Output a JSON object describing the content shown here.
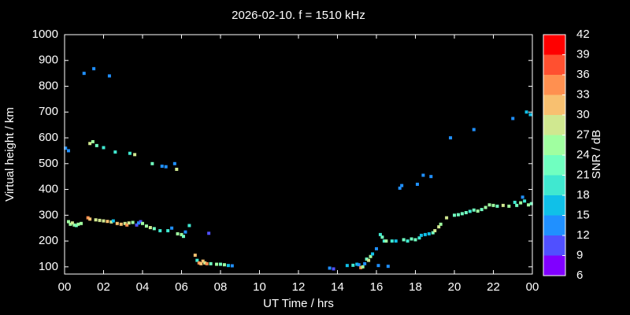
{
  "chart_data": {
    "type": "scatter",
    "title": "2026-02-10. f = 1510 kHz",
    "xlabel": "UT Time / hrs",
    "ylabel": "Virtual height / km",
    "colorbar_label": "SNR / dB",
    "xlim": [
      0,
      24
    ],
    "ylim": [
      72,
      1000
    ],
    "xticks": [
      {
        "value": 0,
        "label": "00"
      },
      {
        "value": 2,
        "label": "02"
      },
      {
        "value": 4,
        "label": "04"
      },
      {
        "value": 6,
        "label": "06"
      },
      {
        "value": 8,
        "label": "08"
      },
      10,
      12,
      14,
      16,
      18,
      20,
      22,
      {
        "value": 24,
        "label": "00"
      }
    ],
    "yticks": [
      100,
      200,
      300,
      400,
      500,
      600,
      700,
      800,
      900,
      1000
    ],
    "clim": [
      6,
      42
    ],
    "cticks": [
      6,
      9,
      12,
      15,
      18,
      21,
      24,
      27,
      30,
      33,
      36,
      39,
      42
    ],
    "colors": [
      "#8000ff",
      "#5050ff",
      "#2090ff",
      "#10c0e8",
      "#40e8d0",
      "#70ffc0",
      "#a0ffa0",
      "#d0e890",
      "#f8c070",
      "#ff9050",
      "#ff5030",
      "#ff0000"
    ],
    "x": [
      0.05,
      0.2,
      0.2,
      0.3,
      0.4,
      0.5,
      0.6,
      0.7,
      0.85,
      1.0,
      1.2,
      1.3,
      1.3,
      1.45,
      1.5,
      1.6,
      1.65,
      1.8,
      2.0,
      2.0,
      2.2,
      2.3,
      2.4,
      2.5,
      2.6,
      2.7,
      2.9,
      3.1,
      3.2,
      3.3,
      3.35,
      3.5,
      3.6,
      3.7,
      3.8,
      3.9,
      4.0,
      4.2,
      4.4,
      4.5,
      4.6,
      4.9,
      5.0,
      5.2,
      5.3,
      5.5,
      5.65,
      5.75,
      5.8,
      6.0,
      6.1,
      6.2,
      6.4,
      6.7,
      6.8,
      6.9,
      7.0,
      7.1,
      7.2,
      7.3,
      7.4,
      7.5,
      7.8,
      8.0,
      8.2,
      8.4,
      8.6,
      13.6,
      13.8,
      14.5,
      14.8,
      15.0,
      15.1,
      15.2,
      15.3,
      15.4,
      15.5,
      15.6,
      15.7,
      15.8,
      16.0,
      16.1,
      16.2,
      16.3,
      16.4,
      16.5,
      16.6,
      16.8,
      17.0,
      17.2,
      17.3,
      17.4,
      17.6,
      17.8,
      18.0,
      18.1,
      18.2,
      18.3,
      18.4,
      18.5,
      18.7,
      18.8,
      18.9,
      19.0,
      19.2,
      19.3,
      19.6,
      19.8,
      20.0,
      20.2,
      20.4,
      20.6,
      20.8,
      21.0,
      21.0,
      21.2,
      21.4,
      21.6,
      21.8,
      22.0,
      22.2,
      22.5,
      22.8,
      23.0,
      23.1,
      23.2,
      23.4,
      23.5,
      23.6,
      23.7,
      23.8,
      23.9,
      23.95
    ],
    "y": [
      560,
      550,
      275,
      265,
      270,
      262,
      260,
      265,
      268,
      850,
      290,
      285,
      578,
      585,
      868,
      282,
      570,
      280,
      278,
      562,
      276,
      840,
      274,
      278,
      545,
      268,
      265,
      268,
      262,
      270,
      540,
      272,
      535,
      262,
      270,
      275,
      268,
      258,
      252,
      500,
      248,
      240,
      490,
      488,
      240,
      250,
      500,
      478,
      228,
      225,
      218,
      235,
      260,
      145,
      125,
      115,
      112,
      122,
      115,
      112,
      230,
      112,
      110,
      110,
      108,
      105,
      104,
      95,
      92,
      105,
      106,
      110,
      108,
      97,
      100,
      112,
      130,
      125,
      140,
      150,
      170,
      105,
      225,
      215,
      200,
      200,
      102,
      200,
      200,
      405,
      415,
      205,
      200,
      208,
      205,
      420,
      212,
      222,
      455,
      225,
      228,
      450,
      232,
      240,
      255,
      265,
      290,
      600,
      300,
      302,
      306,
      310,
      315,
      632,
      320,
      316,
      322,
      330,
      340,
      338,
      335,
      338,
      335,
      675,
      350,
      338,
      348,
      370,
      355,
      700,
      340,
      690,
      345
    ],
    "snr": [
      12,
      12,
      24,
      24,
      27,
      24,
      21,
      24,
      24,
      12,
      33,
      30,
      27,
      24,
      12,
      27,
      21,
      27,
      27,
      18,
      30,
      12,
      27,
      15,
      18,
      30,
      30,
      27,
      33,
      27,
      18,
      24,
      27,
      9,
      12,
      9,
      24,
      24,
      27,
      21,
      21,
      18,
      12,
      12,
      18,
      12,
      12,
      27,
      24,
      24,
      21,
      12,
      18,
      30,
      18,
      33,
      30,
      30,
      27,
      33,
      9,
      21,
      24,
      21,
      24,
      15,
      12,
      12,
      9,
      15,
      18,
      15,
      12,
      33,
      24,
      12,
      21,
      27,
      24,
      15,
      12,
      12,
      18,
      21,
      18,
      24,
      12,
      18,
      15,
      12,
      12,
      21,
      18,
      21,
      21,
      12,
      18,
      15,
      12,
      15,
      15,
      12,
      21,
      27,
      27,
      24,
      27,
      12,
      21,
      21,
      21,
      21,
      18,
      12,
      21,
      24,
      21,
      24,
      24,
      24,
      21,
      27,
      24,
      12,
      18,
      21,
      24,
      12,
      18,
      15,
      24,
      15,
      21
    ]
  }
}
